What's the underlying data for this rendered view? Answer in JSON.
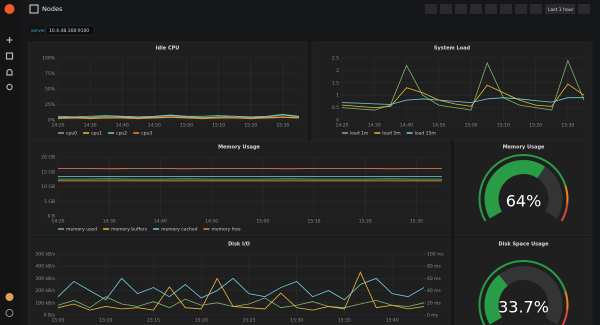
{
  "header": {
    "title": "Nodes",
    "time_range": "Last 1 hour"
  },
  "variables": [
    {
      "label": "server",
      "value": "10.4.48.168:9100"
    }
  ],
  "chart_data": [
    {
      "type": "line",
      "title": "Idle CPU",
      "categories": [
        "14:20",
        null,
        "14:30",
        null,
        "14:40",
        null,
        "14:50",
        null,
        "15:00",
        null,
        "15:10",
        null,
        "15:20",
        null,
        "15:30",
        null
      ],
      "ylim": [
        0,
        100
      ],
      "yticks": [
        {
          "value": 0,
          "label": "0%"
        },
        {
          "value": 25,
          "label": "25%"
        },
        {
          "value": 50,
          "label": "50%"
        },
        {
          "value": 75,
          "label": "75%"
        },
        {
          "value": 100,
          "label": "100%"
        }
      ],
      "series": [
        {
          "name": "cpu0",
          "color": "#7eb26d",
          "values": [
            4,
            5,
            4,
            6,
            5,
            4,
            5,
            7,
            5,
            4,
            5,
            6,
            4,
            5,
            8,
            5
          ]
        },
        {
          "name": "cpu1",
          "color": "#eab839",
          "values": [
            3,
            4,
            3,
            4,
            4,
            3,
            4,
            5,
            4,
            3,
            4,
            4,
            3,
            4,
            5,
            4
          ]
        },
        {
          "name": "cpu2",
          "color": "#6ed0e0",
          "values": [
            6,
            5,
            6,
            7,
            6,
            5,
            6,
            8,
            6,
            6,
            7,
            6,
            5,
            6,
            9,
            6
          ]
        },
        {
          "name": "cpu3",
          "color": "#ef843c",
          "values": [
            2,
            3,
            2,
            3,
            3,
            2,
            3,
            4,
            3,
            2,
            3,
            3,
            2,
            3,
            4,
            3
          ]
        }
      ]
    },
    {
      "type": "line",
      "title": "System Load",
      "categories": [
        "14:20",
        null,
        "14:30",
        null,
        "14:40",
        null,
        "14:50",
        null,
        "15:00",
        null,
        "15:10",
        null,
        "15:20",
        null,
        "15:30",
        null
      ],
      "ylim": [
        0,
        2.5
      ],
      "yticks": [
        0,
        0.5,
        1,
        1.5,
        2,
        2.5
      ],
      "series": [
        {
          "name": "load 1m",
          "color": "#7eb26d",
          "values": [
            0.5,
            0.45,
            0.4,
            0.6,
            2.2,
            1.0,
            0.6,
            0.5,
            0.4,
            2.3,
            0.9,
            0.6,
            0.5,
            0.4,
            2.4,
            0.8
          ]
        },
        {
          "name": "load 5m",
          "color": "#eab839",
          "values": [
            0.6,
            0.55,
            0.5,
            0.55,
            1.3,
            1.1,
            0.8,
            0.65,
            0.55,
            1.4,
            1.1,
            0.8,
            0.6,
            0.55,
            1.45,
            1.0
          ]
        },
        {
          "name": "load 15m",
          "color": "#6ed0e0",
          "values": [
            0.7,
            0.68,
            0.65,
            0.63,
            0.8,
            0.85,
            0.8,
            0.75,
            0.7,
            0.85,
            0.9,
            0.85,
            0.78,
            0.72,
            0.9,
            0.9
          ]
        }
      ]
    },
    {
      "type": "line",
      "title": "Memory Usage",
      "categories": [
        "14:20",
        null,
        "14:30",
        null,
        "14:40",
        null,
        "14:50",
        null,
        "15:00",
        null,
        "15:10",
        null,
        "15:20",
        null,
        "15:30",
        null
      ],
      "ylim": [
        0,
        20
      ],
      "yticks": [
        {
          "value": 0,
          "label": "0 B"
        },
        {
          "value": 5,
          "label": "5 GB"
        },
        {
          "value": 10,
          "label": "10 GB"
        },
        {
          "value": 15,
          "label": "15 GB"
        },
        {
          "value": 20,
          "label": "20 GB"
        }
      ],
      "series": [
        {
          "name": "memory used",
          "color": "#7eb26d",
          "values": [
            12.5,
            12.5,
            12.6,
            12.5,
            12.5,
            12.6,
            12.5,
            12.5,
            12.5,
            12.6,
            12.5,
            12.5,
            12.5,
            12.6,
            12.5,
            12.5
          ]
        },
        {
          "name": "memory buffers",
          "color": "#eab839",
          "values": [
            11.9,
            11.9,
            11.9,
            11.9,
            11.9,
            11.9,
            11.9,
            11.9,
            11.9,
            11.9,
            11.9,
            11.9,
            11.9,
            11.9,
            11.9,
            11.9
          ]
        },
        {
          "name": "memory cached",
          "color": "#6ed0e0",
          "values": [
            13.4,
            13.4,
            13.4,
            13.4,
            13.4,
            13.4,
            13.4,
            13.4,
            13.4,
            13.4,
            13.4,
            13.4,
            13.4,
            13.4,
            13.4,
            13.4
          ]
        },
        {
          "name": "memory free",
          "color": "#ef843c",
          "values": [
            16.1,
            16.1,
            16.0,
            16.1,
            16.1,
            16.0,
            16.1,
            16.1,
            16.1,
            16.0,
            16.1,
            16.1,
            16.1,
            16.0,
            16.1,
            16.1
          ]
        }
      ]
    },
    {
      "type": "gauge",
      "title": "Memory Usage",
      "range": [
        0,
        100
      ],
      "values": [
        64
      ],
      "value_labels": [
        "64%"
      ],
      "color": "#299c46"
    },
    {
      "type": "line",
      "title": "Disk I/O",
      "categories": [
        "15:05",
        null,
        null,
        "15:10",
        null,
        null,
        "15:15",
        null,
        null,
        "15:20",
        null,
        null,
        "15:25",
        null,
        null,
        "15:30",
        null,
        null,
        "15:35",
        null,
        null,
        "15:40",
        null,
        null
      ],
      "ylim": [
        0,
        500
      ],
      "yticks": [
        {
          "value": 0,
          "label": "0 B/s"
        },
        {
          "value": 100,
          "label": "100 kB/s"
        },
        {
          "value": 200,
          "label": "200 kB/s"
        },
        {
          "value": 300,
          "label": "300 kB/s"
        },
        {
          "value": 400,
          "label": "400 kB/s"
        },
        {
          "value": 500,
          "label": "500 kB/s"
        }
      ],
      "y2lim": [
        0,
        100
      ],
      "y2ticks": [
        {
          "value": 0,
          "label": "0 ms"
        },
        {
          "value": 20,
          "label": "20 ms"
        },
        {
          "value": 40,
          "label": "40 ms"
        },
        {
          "value": 60,
          "label": "60 ms"
        },
        {
          "value": 80,
          "label": "80 ms"
        },
        {
          "value": 100,
          "label": "100 ms"
        }
      ],
      "series": [
        {
          "color": "#7eb26d",
          "values": [
            80,
            120,
            60,
            150,
            90,
            70,
            110,
            60,
            130,
            80,
            100,
            70,
            90,
            140,
            60,
            80,
            110,
            70,
            60,
            90,
            120,
            80,
            70,
            100
          ]
        },
        {
          "color": "#eab839",
          "values": [
            60,
            90,
            40,
            70,
            50,
            60,
            40,
            230,
            60,
            50,
            300,
            70,
            60,
            50,
            180,
            60,
            40,
            70,
            50,
            350,
            60,
            80,
            50,
            70
          ]
        },
        {
          "color": "#6ed0e0",
          "axis": "y2",
          "values": [
            30,
            55,
            40,
            25,
            60,
            35,
            45,
            30,
            50,
            28,
            40,
            60,
            35,
            30,
            45,
            55,
            30,
            40,
            25,
            50,
            60,
            35,
            30,
            45
          ]
        }
      ]
    },
    {
      "type": "gauge",
      "title": "Disk Space Usage",
      "range": [
        0,
        100
      ],
      "values": [
        33.7
      ],
      "value_labels": [
        "33.7%"
      ],
      "color": "#299c46"
    }
  ]
}
